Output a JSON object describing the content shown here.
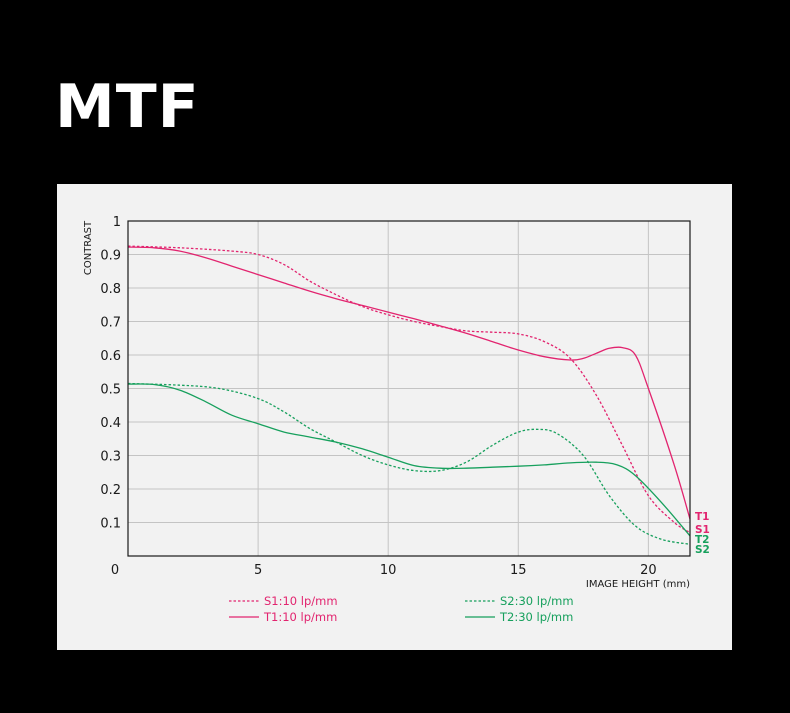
{
  "title": "MTF",
  "colors": {
    "magenta": "#e2246f",
    "green": "#17a05d",
    "grid": "#c4c4c4",
    "frame": "#1a1a1a",
    "panel": "#f2f2f2"
  },
  "chart_data": {
    "type": "line",
    "title": "",
    "xlabel": "IMAGE HEIGHT  (mm)",
    "ylabel": "CONTRAST",
    "xlim": [
      0,
      21.6
    ],
    "ylim": [
      0,
      1
    ],
    "x_ticks": [
      "0",
      "5",
      "10",
      "15",
      "20"
    ],
    "x_tick_values": [
      0,
      5,
      10,
      15,
      20
    ],
    "y_ticks": [
      "0.1",
      "0.2",
      "0.3",
      "0.4",
      "0.5",
      "0.6",
      "0.7",
      "0.8",
      "0.9",
      "1"
    ],
    "y_tick_values": [
      0.1,
      0.2,
      0.3,
      0.4,
      0.5,
      0.6,
      0.7,
      0.8,
      0.9,
      1
    ],
    "grid": true,
    "series": [
      {
        "name": "S1:10 lp/mm",
        "end_label": "S1",
        "color": "#e2246f",
        "dash": true,
        "points": [
          [
            0,
            0.925
          ],
          [
            2,
            0.92
          ],
          [
            4,
            0.91
          ],
          [
            5,
            0.9
          ],
          [
            6,
            0.87
          ],
          [
            7,
            0.82
          ],
          [
            8,
            0.78
          ],
          [
            9,
            0.745
          ],
          [
            10,
            0.72
          ],
          [
            11,
            0.7
          ],
          [
            12,
            0.685
          ],
          [
            13,
            0.672
          ],
          [
            14,
            0.668
          ],
          [
            15,
            0.663
          ],
          [
            16,
            0.64
          ],
          [
            17,
            0.59
          ],
          [
            18,
            0.48
          ],
          [
            19,
            0.33
          ],
          [
            20,
            0.18
          ],
          [
            21,
            0.1
          ],
          [
            21.6,
            0.07
          ]
        ]
      },
      {
        "name": "T1:10 lp/mm",
        "end_label": "T1",
        "color": "#e2246f",
        "dash": false,
        "points": [
          [
            0,
            0.922
          ],
          [
            1,
            0.92
          ],
          [
            2,
            0.91
          ],
          [
            3,
            0.89
          ],
          [
            4,
            0.865
          ],
          [
            5,
            0.84
          ],
          [
            6,
            0.815
          ],
          [
            7,
            0.79
          ],
          [
            8,
            0.768
          ],
          [
            9,
            0.748
          ],
          [
            10,
            0.728
          ],
          [
            11,
            0.708
          ],
          [
            12,
            0.687
          ],
          [
            13,
            0.665
          ],
          [
            14,
            0.64
          ],
          [
            15,
            0.615
          ],
          [
            16,
            0.595
          ],
          [
            17,
            0.585
          ],
          [
            17.5,
            0.59
          ],
          [
            18,
            0.605
          ],
          [
            18.5,
            0.62
          ],
          [
            19,
            0.622
          ],
          [
            19.5,
            0.6
          ],
          [
            20,
            0.5
          ],
          [
            21,
            0.27
          ],
          [
            21.6,
            0.11
          ]
        ]
      },
      {
        "name": "S2:30 lp/mm",
        "end_label": "S2",
        "color": "#17a05d",
        "dash": true,
        "points": [
          [
            0,
            0.515
          ],
          [
            2,
            0.51
          ],
          [
            3.5,
            0.5
          ],
          [
            5,
            0.47
          ],
          [
            6,
            0.43
          ],
          [
            7,
            0.38
          ],
          [
            8,
            0.34
          ],
          [
            9,
            0.3
          ],
          [
            10,
            0.272
          ],
          [
            11,
            0.255
          ],
          [
            12,
            0.255
          ],
          [
            13,
            0.28
          ],
          [
            14,
            0.33
          ],
          [
            15,
            0.37
          ],
          [
            15.8,
            0.378
          ],
          [
            16.5,
            0.365
          ],
          [
            17.5,
            0.3
          ],
          [
            18.5,
            0.18
          ],
          [
            19.5,
            0.09
          ],
          [
            20.5,
            0.05
          ],
          [
            21.6,
            0.035
          ]
        ]
      },
      {
        "name": "T2:30 lp/mm",
        "end_label": "T2",
        "color": "#17a05d",
        "dash": false,
        "points": [
          [
            0,
            0.513
          ],
          [
            1,
            0.512
          ],
          [
            2,
            0.495
          ],
          [
            3,
            0.46
          ],
          [
            4,
            0.42
          ],
          [
            5,
            0.395
          ],
          [
            6,
            0.37
          ],
          [
            7,
            0.355
          ],
          [
            8,
            0.34
          ],
          [
            9,
            0.32
          ],
          [
            10,
            0.295
          ],
          [
            11,
            0.27
          ],
          [
            12,
            0.262
          ],
          [
            13,
            0.262
          ],
          [
            14,
            0.265
          ],
          [
            15,
            0.268
          ],
          [
            16,
            0.272
          ],
          [
            17,
            0.278
          ],
          [
            18,
            0.28
          ],
          [
            18.8,
            0.272
          ],
          [
            19.5,
            0.24
          ],
          [
            20.5,
            0.16
          ],
          [
            21.6,
            0.06
          ]
        ]
      }
    ],
    "legend": "bottom"
  }
}
